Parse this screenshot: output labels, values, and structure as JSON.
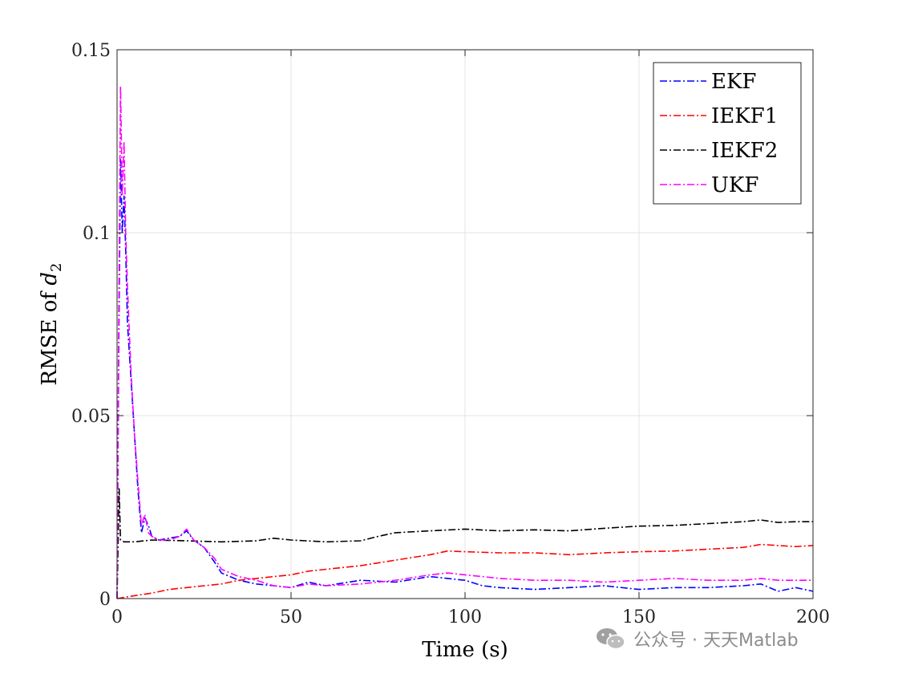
{
  "chart_data": {
    "type": "line",
    "xlabel": "Time (s)",
    "ylabel_prefix": "RMSE of ",
    "ylabel_var": "d",
    "ylabel_sub": "2",
    "xlim": [
      0,
      200
    ],
    "ylim": [
      0,
      0.15
    ],
    "xticks": [
      0,
      50,
      100,
      150,
      200
    ],
    "xtick_labels": [
      "0",
      "50",
      "100",
      "150",
      "200"
    ],
    "yticks": [
      0,
      0.05,
      0.1,
      0.15
    ],
    "ytick_labels": [
      "0",
      "0.05",
      "0.1",
      "0.15"
    ],
    "grid": true,
    "legend_position": "top-right",
    "series": [
      {
        "name": "EKF",
        "color": "#0000ff",
        "x": [
          0,
          0.5,
          1,
          1.5,
          2,
          2.5,
          3,
          4,
          5,
          6,
          7,
          8,
          9,
          10,
          12,
          15,
          18,
          20,
          22,
          25,
          28,
          30,
          35,
          40,
          45,
          50,
          55,
          60,
          70,
          80,
          90,
          95,
          100,
          105,
          110,
          120,
          130,
          140,
          150,
          160,
          170,
          180,
          185,
          190,
          195,
          200
        ],
        "y": [
          0,
          0.07,
          0.12,
          0.1,
          0.11,
          0.095,
          0.075,
          0.06,
          0.045,
          0.03,
          0.018,
          0.022,
          0.02,
          0.017,
          0.016,
          0.0165,
          0.017,
          0.0185,
          0.016,
          0.014,
          0.01,
          0.007,
          0.005,
          0.004,
          0.0035,
          0.003,
          0.0045,
          0.0035,
          0.005,
          0.0045,
          0.006,
          0.0055,
          0.005,
          0.0035,
          0.003,
          0.0025,
          0.003,
          0.0035,
          0.0025,
          0.003,
          0.003,
          0.0035,
          0.004,
          0.002,
          0.003,
          0.002
        ]
      },
      {
        "name": "IEKF1",
        "color": "#ff0000",
        "x": [
          0,
          5,
          10,
          15,
          20,
          25,
          30,
          35,
          40,
          45,
          50,
          55,
          60,
          70,
          80,
          90,
          95,
          100,
          110,
          120,
          130,
          140,
          150,
          160,
          170,
          180,
          185,
          190,
          195,
          200
        ],
        "y": [
          0,
          0.0008,
          0.0015,
          0.0025,
          0.003,
          0.0035,
          0.004,
          0.005,
          0.0055,
          0.006,
          0.0065,
          0.0075,
          0.008,
          0.009,
          0.0105,
          0.012,
          0.013,
          0.0128,
          0.0125,
          0.0125,
          0.012,
          0.0125,
          0.0128,
          0.013,
          0.0135,
          0.014,
          0.0148,
          0.0145,
          0.0142,
          0.0145
        ]
      },
      {
        "name": "IEKF2",
        "color": "#000000",
        "x": [
          0,
          0.3,
          0.6,
          1,
          2,
          5,
          10,
          20,
          30,
          40,
          45,
          50,
          60,
          70,
          75,
          80,
          90,
          100,
          110,
          120,
          130,
          140,
          150,
          160,
          170,
          180,
          185,
          190,
          195,
          200
        ],
        "y": [
          0,
          0.015,
          0.03,
          0.016,
          0.0155,
          0.0155,
          0.016,
          0.0158,
          0.0155,
          0.0158,
          0.0165,
          0.016,
          0.0155,
          0.0158,
          0.017,
          0.018,
          0.0185,
          0.019,
          0.0185,
          0.0188,
          0.0185,
          0.0192,
          0.0198,
          0.02,
          0.0205,
          0.021,
          0.0215,
          0.0208,
          0.021,
          0.021
        ]
      },
      {
        "name": "UKF",
        "color": "#ff00ff",
        "x": [
          0,
          0.5,
          1,
          1.5,
          2,
          2.5,
          3,
          4,
          5,
          6,
          7,
          8,
          9,
          10,
          12,
          15,
          18,
          20,
          22,
          25,
          28,
          30,
          35,
          40,
          45,
          50,
          55,
          60,
          70,
          80,
          90,
          95,
          100,
          105,
          110,
          120,
          130,
          140,
          150,
          160,
          170,
          180,
          185,
          190,
          195,
          200
        ],
        "y": [
          0,
          0.08,
          0.14,
          0.11,
          0.125,
          0.1,
          0.085,
          0.062,
          0.045,
          0.032,
          0.02,
          0.023,
          0.018,
          0.017,
          0.016,
          0.016,
          0.017,
          0.019,
          0.016,
          0.014,
          0.011,
          0.008,
          0.006,
          0.005,
          0.0035,
          0.003,
          0.004,
          0.0035,
          0.004,
          0.005,
          0.0065,
          0.007,
          0.0065,
          0.006,
          0.0055,
          0.005,
          0.005,
          0.0045,
          0.005,
          0.0055,
          0.005,
          0.005,
          0.0055,
          0.005,
          0.005,
          0.005
        ]
      }
    ]
  },
  "watermark": {
    "text": "公众号 · 天天Matlab",
    "icon": "wechat-icon"
  }
}
